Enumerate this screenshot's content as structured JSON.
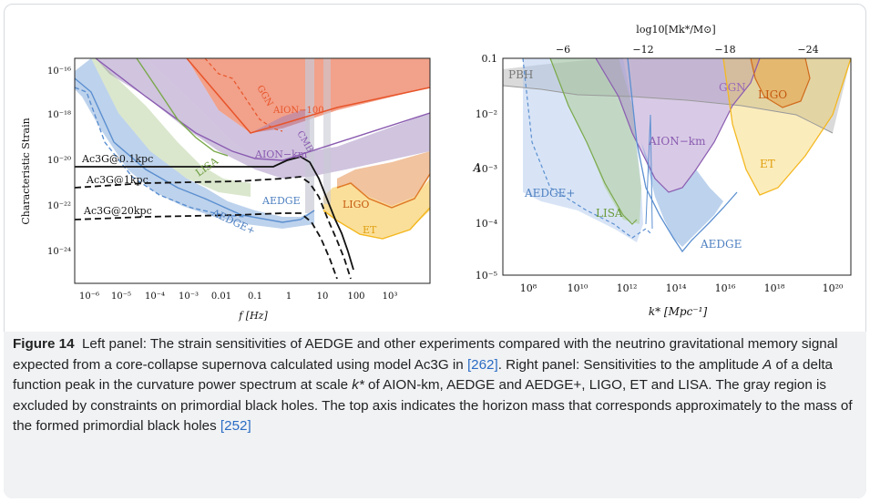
{
  "left_panel": {
    "ylabel": "Characteristic Strain",
    "xlabel": "f [Hz]",
    "xticks": [
      "10⁻⁶",
      "10⁻⁵",
      "10⁻⁴",
      "10⁻³",
      "0.01",
      "0.1",
      "1",
      "10",
      "100",
      "10³"
    ],
    "yticks": [
      "10⁻¹⁶",
      "10⁻¹⁸",
      "10⁻²⁰",
      "10⁻²²",
      "10⁻²⁴"
    ],
    "labels": {
      "ac01": "Ac3G@0.1kpc",
      "ac1": "Ac3G@1kpc",
      "ac20": "Ac3G@20kpc",
      "lisa": "LISA",
      "aion": "AION−km",
      "aedge": "AEDGE",
      "aedgeplus": "AEDGE+",
      "ligo": "LIGO",
      "et": "ET",
      "ggn": "GGN",
      "aion100": "AION−100",
      "cmb": "CMB"
    }
  },
  "right_panel": {
    "ylabel": "A",
    "xlabel": "k* [Mpc⁻¹]",
    "top_label": "log10[Mk*/M⊙]",
    "top_ticks": [
      "−6",
      "−12",
      "−18",
      "−24"
    ],
    "xticks": [
      "10⁸",
      "10¹⁰",
      "10¹²",
      "10¹⁴",
      "10¹⁶",
      "10¹⁸",
      "10²⁰"
    ],
    "yticks": [
      "0.1",
      "10⁻²",
      "10⁻³",
      "10⁻⁴",
      "10⁻⁵"
    ],
    "labels": {
      "pbh": "PBH",
      "ggn": "GGN",
      "ligo": "LIGO",
      "aion": "AION−km",
      "et": "ET",
      "aedgeplus": "AEDGE+",
      "lisa": "LISA",
      "aedge": "AEDGE"
    }
  },
  "caption": {
    "label": "Figure 14",
    "part1": "Left panel: The strain sensitivities of AEDGE and other experiments compared with the neutrino gravitational memory signal expected from a core-collapse supernova calculated using model Ac3G in ",
    "ref1": "[262]",
    "part2": ". Right panel: Sensitivities to the amplitude ",
    "amp": "A",
    "part3": " of a delta function peak in the curvature power spectrum at scale ",
    "kstar": "k*",
    "part4": " of AION-km, AEDGE and AEDGE+, LIGO, ET and LISA. The gray region is excluded by constraints on primordial black holes. The top axis indicates the horizon mass that corresponds approximately to the mass of the formed primordial black holes ",
    "ref2": "[252]"
  },
  "colors": {
    "ligo": "#e07a2a",
    "et": "#f4b820",
    "aion": "#8a5bb0",
    "lisa": "#7aa84a",
    "aedge": "#5b8fd0",
    "red": "#e8542a",
    "pbh": "#bbbbbb"
  }
}
